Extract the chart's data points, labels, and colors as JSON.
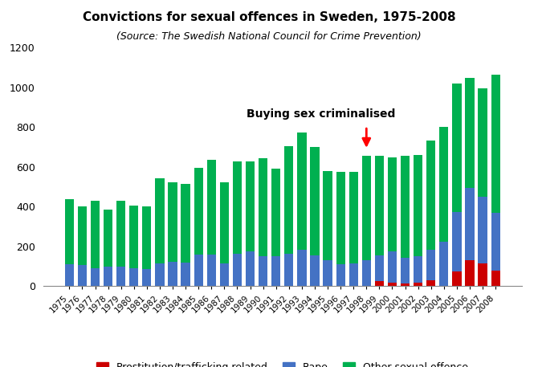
{
  "title": "Convictions for sexual offences in Sweden, 1975-2008",
  "subtitle": "(Source: The Swedish National Council for Crime Prevention)",
  "years": [
    1975,
    1976,
    1977,
    1978,
    1979,
    1980,
    1981,
    1982,
    1983,
    1984,
    1985,
    1986,
    1987,
    1988,
    1989,
    1990,
    1991,
    1992,
    1993,
    1994,
    1995,
    1996,
    1997,
    1998,
    1999,
    2000,
    2001,
    2002,
    2003,
    2004,
    2005,
    2006,
    2007,
    2008
  ],
  "prostitution": [
    0,
    0,
    0,
    0,
    0,
    0,
    0,
    0,
    0,
    0,
    0,
    0,
    0,
    0,
    0,
    0,
    0,
    0,
    0,
    0,
    0,
    0,
    0,
    0,
    25,
    20,
    15,
    20,
    30,
    0,
    75,
    130,
    115,
    80
  ],
  "rape": [
    110,
    105,
    90,
    100,
    100,
    90,
    85,
    115,
    125,
    120,
    160,
    160,
    115,
    165,
    175,
    150,
    150,
    165,
    185,
    155,
    130,
    110,
    115,
    130,
    130,
    155,
    130,
    130,
    155,
    225,
    300,
    365,
    335,
    290
  ],
  "other": [
    330,
    295,
    340,
    285,
    330,
    315,
    315,
    430,
    400,
    395,
    435,
    475,
    410,
    465,
    455,
    495,
    440,
    540,
    590,
    545,
    450,
    465,
    460,
    525,
    500,
    475,
    510,
    510,
    550,
    575,
    645,
    555,
    545,
    695
  ],
  "annotation_text": "Buying sex criminalised",
  "annotation_arrow_year_idx": 23,
  "color_prostitution": "#cc0000",
  "color_rape": "#4472c4",
  "color_other": "#00b050",
  "ylim": [
    0,
    1200
  ],
  "yticks": [
    0,
    200,
    400,
    600,
    800,
    1000,
    1200
  ],
  "title_fontsize": 11,
  "subtitle_fontsize": 9,
  "bar_width": 0.7,
  "figsize": [
    6.7,
    4.57
  ],
  "dpi": 100
}
